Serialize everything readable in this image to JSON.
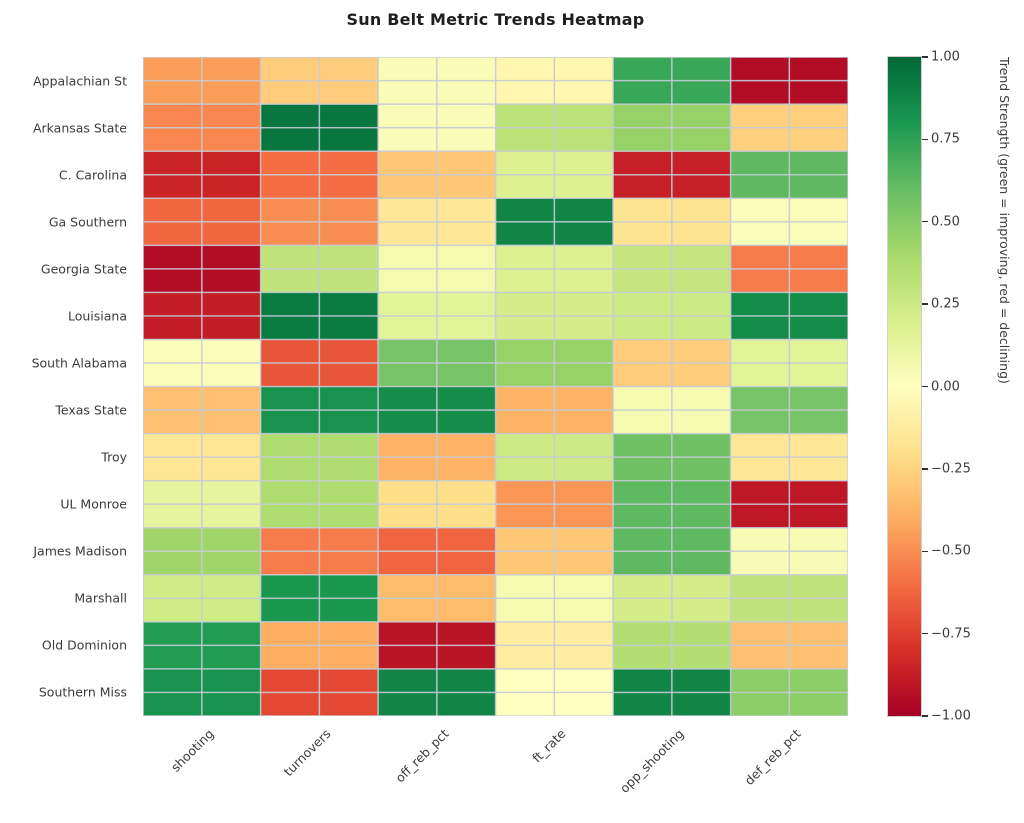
{
  "title": "Sun Belt Metric Trends Heatmap",
  "chart_data": {
    "type": "heatmap",
    "title": "Sun Belt Metric Trends Heatmap",
    "rows": [
      "Appalachian St",
      "Arkansas State",
      "C. Carolina",
      "Ga Southern",
      "Georgia State",
      "Louisiana",
      "South Alabama",
      "Texas State",
      "Troy",
      "UL Monroe",
      "James Madison",
      "Marshall",
      "Old Dominion",
      "Southern Miss"
    ],
    "columns": [
      "shooting",
      "turnovers",
      "off_reb_pct",
      "ft_rate",
      "opp_shooting",
      "def_reb_pct"
    ],
    "values": [
      [
        -0.45,
        -0.28,
        0.03,
        -0.06,
        0.72,
        -0.95
      ],
      [
        -0.52,
        0.94,
        0.03,
        0.32,
        0.45,
        -0.27
      ],
      [
        -0.85,
        -0.6,
        -0.3,
        0.18,
        -0.87,
        0.62
      ],
      [
        -0.62,
        -0.5,
        -0.15,
        0.88,
        -0.18,
        0.02
      ],
      [
        -0.95,
        0.3,
        0.06,
        0.18,
        0.28,
        -0.55
      ],
      [
        -0.88,
        0.92,
        0.15,
        0.22,
        0.25,
        0.85
      ],
      [
        0.02,
        -0.68,
        0.55,
        0.45,
        -0.28,
        0.15
      ],
      [
        -0.33,
        0.82,
        0.85,
        -0.38,
        0.05,
        0.55
      ],
      [
        -0.16,
        0.37,
        -0.38,
        0.25,
        0.57,
        -0.15
      ],
      [
        0.13,
        0.37,
        -0.2,
        -0.47,
        0.62,
        -0.9
      ],
      [
        0.42,
        -0.55,
        -0.63,
        -0.3,
        0.62,
        0.04
      ],
      [
        0.24,
        0.8,
        -0.35,
        0.06,
        0.22,
        0.3
      ],
      [
        0.78,
        -0.4,
        -0.92,
        -0.12,
        0.35,
        -0.33
      ],
      [
        0.82,
        -0.72,
        0.88,
        0.0,
        0.88,
        0.48
      ]
    ],
    "vmin": -1,
    "vmax": 1,
    "colormap": "RdYlGn",
    "colormap_stops": [
      "#a50026",
      "#d73027",
      "#f46d43",
      "#fdae61",
      "#fee08b",
      "#ffffbf",
      "#d9ef8b",
      "#a6d96a",
      "#66bd63",
      "#1a9850",
      "#006837"
    ],
    "grid_on": true,
    "grid_color": "#c6cbd6",
    "colorbar": {
      "ticks": [
        "1.00",
        "0.75",
        "0.50",
        "0.25",
        "0.00",
        "−0.25",
        "−0.50",
        "−0.75",
        "−1.00"
      ],
      "label": "Trend Strength (green = improving, red = declining)",
      "position": "right"
    }
  }
}
